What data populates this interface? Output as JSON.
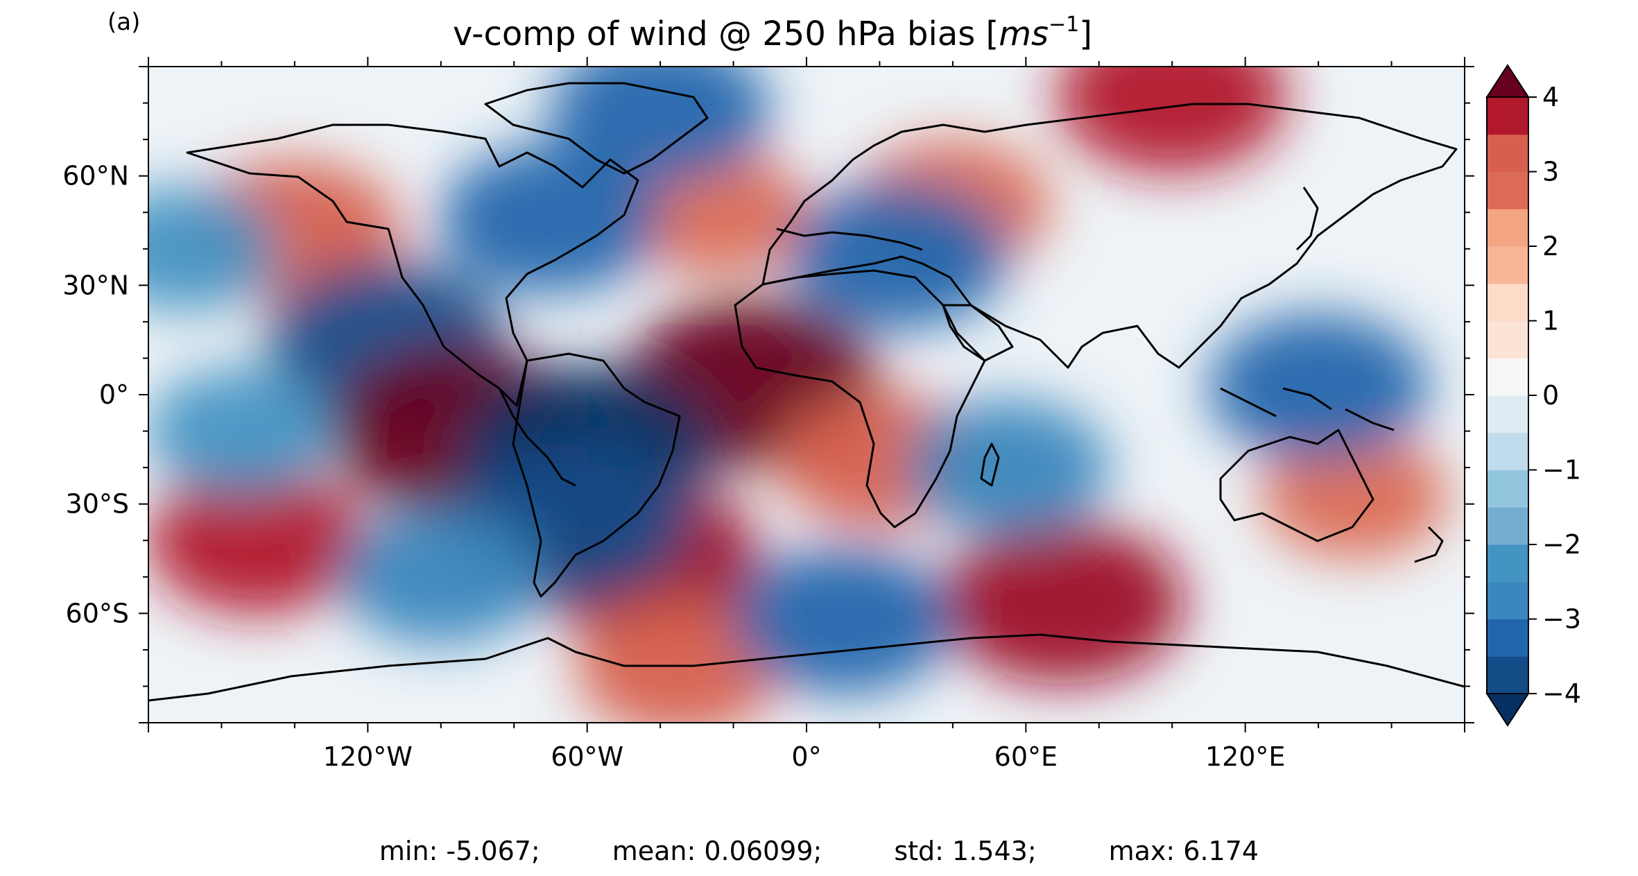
{
  "panel_label": "(a)",
  "title": {
    "prefix": "v-comp of wind @ 250 hPa bias [",
    "unit_base": "ms",
    "unit_exp": "−1",
    "suffix": "]"
  },
  "map": {
    "projection": "PlateCarree",
    "lon_range": [
      -180,
      180
    ],
    "lat_range": [
      -90,
      90
    ],
    "x_ticks": [
      {
        "lon": -120,
        "label": "120°W"
      },
      {
        "lon": -60,
        "label": "60°W"
      },
      {
        "lon": 0,
        "label": "0°"
      },
      {
        "lon": 60,
        "label": "60°E"
      },
      {
        "lon": 120,
        "label": "120°E"
      }
    ],
    "y_ticks": [
      {
        "lat": 60,
        "label": "60°N"
      },
      {
        "lat": 30,
        "label": "30°N"
      },
      {
        "lat": 0,
        "label": "0°"
      },
      {
        "lat": -30,
        "label": "30°S"
      },
      {
        "lat": -60,
        "label": "60°S"
      }
    ],
    "coastlines": true
  },
  "field_features": [
    {
      "lon": -140,
      "lat": 45,
      "value": 3.2
    },
    {
      "lon": -115,
      "lat": 15,
      "value": -4.0
    },
    {
      "lon": -95,
      "lat": -10,
      "value": 4.6
    },
    {
      "lon": -150,
      "lat": -40,
      "value": 3.5
    },
    {
      "lon": -45,
      "lat": -45,
      "value": 4.0
    },
    {
      "lon": -35,
      "lat": -75,
      "value": 3.0
    },
    {
      "lon": -15,
      "lat": 3,
      "value": 4.5
    },
    {
      "lon": 20,
      "lat": -18,
      "value": 3.0
    },
    {
      "lon": 70,
      "lat": -57,
      "value": 4.2
    },
    {
      "lon": 100,
      "lat": 82,
      "value": 3.8
    },
    {
      "lon": 40,
      "lat": 52,
      "value": 2.8
    },
    {
      "lon": -25,
      "lat": 50,
      "value": 2.5
    },
    {
      "lon": 150,
      "lat": -28,
      "value": 2.5
    },
    {
      "lon": -60,
      "lat": -15,
      "value": -4.5
    },
    {
      "lon": -65,
      "lat": -35,
      "value": -4.0
    },
    {
      "lon": -70,
      "lat": 48,
      "value": -3.5
    },
    {
      "lon": -40,
      "lat": 78,
      "value": -3.5
    },
    {
      "lon": 25,
      "lat": 38,
      "value": -3.5
    },
    {
      "lon": 10,
      "lat": -62,
      "value": -3.5
    },
    {
      "lon": -100,
      "lat": -50,
      "value": -3.0
    },
    {
      "lon": 140,
      "lat": 2,
      "value": -3.5
    },
    {
      "lon": 55,
      "lat": -20,
      "value": -3.0
    },
    {
      "lon": -170,
      "lat": 40,
      "value": -2.5
    },
    {
      "lon": -155,
      "lat": -10,
      "value": -2.5
    }
  ],
  "colorbar": {
    "vmin": -4,
    "vmax": 4,
    "step": 0.5,
    "extend": "both",
    "ticks": [
      {
        "value": 4,
        "label": "4"
      },
      {
        "value": 3,
        "label": "3"
      },
      {
        "value": 2,
        "label": "2"
      },
      {
        "value": 1,
        "label": "1"
      },
      {
        "value": 0,
        "label": "0"
      },
      {
        "value": -1,
        "label": "−1"
      },
      {
        "value": -2,
        "label": "−2"
      },
      {
        "value": -3,
        "label": "−3"
      },
      {
        "value": -4,
        "label": "−4"
      }
    ],
    "colors": [
      "#053061",
      "#134c87",
      "#2166ac",
      "#3a87bd",
      "#4393c3",
      "#74add1",
      "#92c5de",
      "#c0dbec",
      "#deebf2",
      "#f7f7f7",
      "#fbe3d6",
      "#fddbc7",
      "#f7b698",
      "#f4a582",
      "#db6b55",
      "#d6604d",
      "#b2182b",
      "#9d1126",
      "#67001f"
    ]
  },
  "stats": {
    "min": "min: -5.067;",
    "mean": "mean: 0.06099;",
    "std": "std: 1.543;",
    "max": "max: 6.174"
  }
}
